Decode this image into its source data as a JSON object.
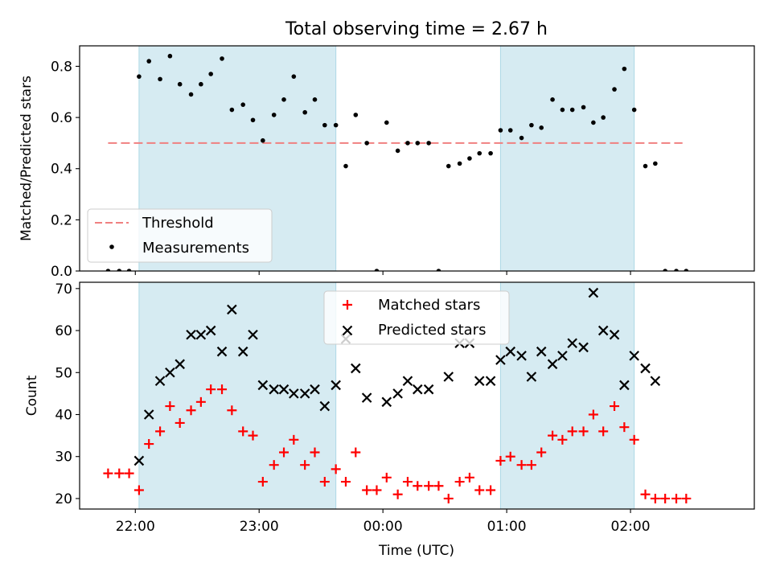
{
  "chart_data": {
    "title": "Total observing time = 2.67 h",
    "xlabel": "Time (UTC)",
    "x_unit": "hours after 21:00 UTC",
    "x_range": [
      20.55,
      26.0
    ],
    "x_ticks": [
      {
        "value": 21.0,
        "label": "22:00"
      },
      {
        "value": 22.0,
        "label": "23:00"
      },
      {
        "value": 23.0,
        "label": "00:00"
      },
      {
        "value": 24.0,
        "label": "01:00"
      },
      {
        "value": 25.0,
        "label": "02:00"
      }
    ],
    "shaded_intervals": [
      [
        21.03,
        22.62
      ],
      [
        23.95,
        25.03
      ]
    ],
    "shade_color": "#add8e6",
    "panels": [
      {
        "type": "scatter",
        "ylabel": "Matched/Predicted stars",
        "ylim": [
          0.0,
          0.88
        ],
        "y_ticks": [
          0.0,
          0.2,
          0.4,
          0.6,
          0.8
        ],
        "y_tick_labels": [
          "0.0",
          "0.2",
          "0.4",
          "0.6",
          "0.8"
        ],
        "threshold": {
          "name": "Threshold",
          "value": 0.5,
          "x_range": [
            20.78,
            25.42
          ],
          "color": "#f08080"
        },
        "series": [
          {
            "name": "Measurements",
            "marker": "dot",
            "color": "#000000",
            "x": [
              20.78,
              20.87,
              20.95,
              21.03,
              21.11,
              21.2,
              21.28,
              21.36,
              21.45,
              21.53,
              21.61,
              21.7,
              21.78,
              21.87,
              21.95,
              22.03,
              22.12,
              22.2,
              22.28,
              22.37,
              22.45,
              22.53,
              22.62,
              22.7,
              22.78,
              22.87,
              22.95,
              23.03,
              23.12,
              23.2,
              23.28,
              23.37,
              23.45,
              23.53,
              23.62,
              23.7,
              23.78,
              23.87,
              23.95,
              24.03,
              24.12,
              24.2,
              24.28,
              24.37,
              24.45,
              24.53,
              24.62,
              24.7,
              24.78,
              24.87,
              24.95,
              25.03,
              25.12,
              25.2,
              25.28,
              25.37,
              25.45
            ],
            "y": [
              0.0,
              0.0,
              0.0,
              0.76,
              0.82,
              0.75,
              0.84,
              0.73,
              0.69,
              0.73,
              0.77,
              0.83,
              0.63,
              0.65,
              0.59,
              0.51,
              0.61,
              0.67,
              0.76,
              0.62,
              0.67,
              0.57,
              0.57,
              0.41,
              0.61,
              0.5,
              0.0,
              0.58,
              0.47,
              0.5,
              0.5,
              0.5,
              0.0,
              0.41,
              0.42,
              0.44,
              0.46,
              0.46,
              0.55,
              0.55,
              0.52,
              0.57,
              0.56,
              0.67,
              0.63,
              0.63,
              0.64,
              0.58,
              0.6,
              0.71,
              0.79,
              0.63,
              0.41,
              0.42,
              0.0,
              0.0,
              0.0
            ]
          }
        ],
        "legend": {
          "placement": "lower-left",
          "entries": [
            "Threshold",
            "Measurements"
          ]
        }
      },
      {
        "type": "scatter",
        "ylabel": "Count",
        "ylim": [
          17.5,
          71.5
        ],
        "y_ticks": [
          20,
          30,
          40,
          50,
          60,
          70
        ],
        "y_tick_labels": [
          "20",
          "30",
          "40",
          "50",
          "60",
          "70"
        ],
        "series": [
          {
            "name": "Matched stars",
            "marker": "plus",
            "color": "#ff0000",
            "x": [
              20.78,
              20.87,
              20.95,
              21.03,
              21.11,
              21.2,
              21.28,
              21.36,
              21.45,
              21.53,
              21.61,
              21.7,
              21.78,
              21.87,
              21.95,
              22.03,
              22.12,
              22.2,
              22.28,
              22.37,
              22.45,
              22.53,
              22.62,
              22.7,
              22.78,
              22.87,
              22.95,
              23.03,
              23.12,
              23.2,
              23.28,
              23.37,
              23.45,
              23.53,
              23.62,
              23.7,
              23.78,
              23.87,
              23.95,
              24.03,
              24.12,
              24.2,
              24.28,
              24.37,
              24.45,
              24.53,
              24.62,
              24.7,
              24.78,
              24.87,
              24.95,
              25.03,
              25.12,
              25.2,
              25.28,
              25.37,
              25.45
            ],
            "y": [
              26,
              26,
              26,
              22,
              33,
              36,
              42,
              38,
              41,
              43,
              46,
              46,
              41,
              36,
              35,
              24,
              28,
              31,
              34,
              28,
              31,
              24,
              27,
              24,
              31,
              22,
              22,
              25,
              21,
              24,
              23,
              23,
              23,
              20,
              24,
              25,
              22,
              22,
              29,
              30,
              28,
              28,
              31,
              35,
              34,
              36,
              36,
              40,
              36,
              42,
              37,
              34,
              21,
              20,
              20,
              20,
              20
            ]
          },
          {
            "name": "Predicted stars",
            "marker": "x",
            "color": "#000000",
            "x": [
              21.03,
              21.11,
              21.2,
              21.28,
              21.36,
              21.45,
              21.53,
              21.61,
              21.7,
              21.78,
              21.87,
              21.95,
              22.03,
              22.12,
              22.2,
              22.28,
              22.37,
              22.45,
              22.53,
              22.62,
              22.7,
              22.78,
              22.87,
              23.03,
              23.12,
              23.2,
              23.28,
              23.37,
              23.53,
              23.62,
              23.7,
              23.78,
              23.87,
              23.95,
              24.03,
              24.12,
              24.2,
              24.28,
              24.37,
              24.45,
              24.53,
              24.62,
              24.7,
              24.78,
              24.87,
              24.95,
              25.03,
              25.12,
              25.2
            ],
            "y": [
              29,
              40,
              48,
              50,
              52,
              59,
              59,
              60,
              55,
              65,
              55,
              59,
              47,
              46,
              46,
              45,
              45,
              46,
              42,
              47,
              58,
              51,
              44,
              43,
              45,
              48,
              46,
              46,
              49,
              57,
              57,
              48,
              48,
              53,
              55,
              54,
              49,
              55,
              52,
              54,
              57,
              56,
              69,
              60,
              59,
              47,
              54,
              51,
              48
            ]
          }
        ],
        "legend": {
          "placement": "upper-center",
          "entries": [
            "Matched stars",
            "Predicted stars"
          ]
        }
      }
    ]
  }
}
